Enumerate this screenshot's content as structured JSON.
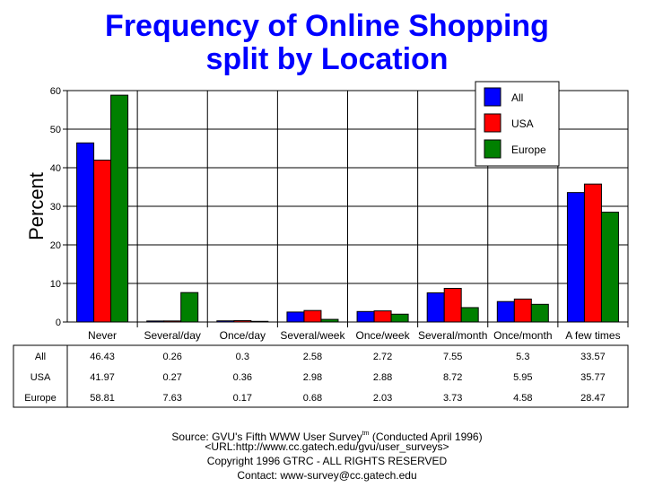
{
  "title_line1": "Frequency of Online Shopping",
  "title_line2": "split by Location",
  "source": {
    "line1_a": "Source: GVU's Fifth WWW User Survey",
    "line1_sup": "tm",
    "line1_b": "  (Conducted April 1996)",
    "line2": "<URL:http://www.cc.gatech.edu/gvu/user_surveys>",
    "line3": "Copyright 1996 GTRC -  ALL RIGHTS RESERVED",
    "line4": "Contact: www-survey@cc.gatech.edu"
  },
  "chart_data": {
    "type": "bar",
    "title": "Frequency of Online Shopping split by Location",
    "ylabel": "Percent",
    "xlabel": "",
    "ylim": [
      0,
      60
    ],
    "yticks": [
      0,
      10,
      20,
      30,
      40,
      50,
      60
    ],
    "grid": true,
    "legend_position": "top-right",
    "categories": [
      "Never",
      "Several/day",
      "Once/day",
      "Several/week",
      "Once/week",
      "Several/month",
      "Once/month",
      "A few times"
    ],
    "series": [
      {
        "name": "All",
        "color": "#0000ff",
        "values": [
          46.43,
          0.26,
          0.3,
          2.58,
          2.72,
          7.55,
          5.3,
          33.57
        ],
        "labels": [
          "46.43",
          "0.26",
          "0.3",
          "2.58",
          "2.72",
          "7.55",
          "5.3",
          "33.57"
        ]
      },
      {
        "name": "USA",
        "color": "#ff0000",
        "values": [
          41.97,
          0.27,
          0.36,
          2.98,
          2.88,
          8.72,
          5.95,
          35.77
        ],
        "labels": [
          "41.97",
          "0.27",
          "0.36",
          "2.98",
          "2.88",
          "8.72",
          "5.95",
          "35.77"
        ]
      },
      {
        "name": "Europe",
        "color": "#008000",
        "values": [
          58.81,
          7.63,
          0.17,
          0.68,
          2.03,
          3.73,
          4.58,
          28.47
        ],
        "labels": [
          "58.81",
          "7.63",
          "0.17",
          "0.68",
          "2.03",
          "3.73",
          "4.58",
          "28.47"
        ]
      }
    ]
  }
}
